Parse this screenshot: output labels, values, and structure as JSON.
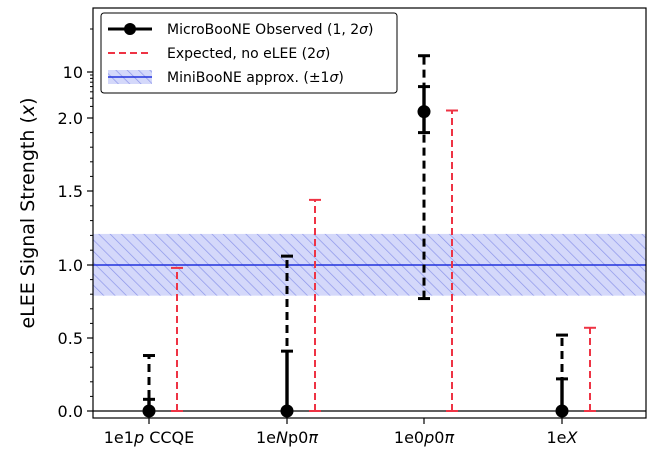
{
  "chart_data": {
    "type": "errorbar",
    "title": "",
    "xlabel": "",
    "ylabel_main": "eLEE Signal Strength (",
    "ylabel_var": "x",
    "ylabel_close": ")",
    "y_scale": "piecewise (linear 0 to 1.5, compressed above 1.5)",
    "y_ticks": [
      {
        "value": 0.0,
        "label": "0.0"
      },
      {
        "value": 0.5,
        "label": "0.5"
      },
      {
        "value": 1.0,
        "label": "1.0"
      },
      {
        "value": 1.5,
        "label": "1.5"
      },
      {
        "value": 2.0,
        "label": "2.0"
      },
      {
        "value": 10,
        "label": "10"
      }
    ],
    "categories": [
      {
        "main": "1e1",
        "italic": "p",
        "rest": " CCQE"
      },
      {
        "main": "1e",
        "italic": "N",
        "rest": "p0",
        "italic2": "π"
      },
      {
        "main": "1e0",
        "italic": "p",
        "rest": "0",
        "italic2": "π"
      },
      {
        "main": "1e",
        "italic": "X",
        "rest": ""
      }
    ],
    "band": {
      "center": 1.0,
      "low": 0.79,
      "high": 1.21,
      "color": "#3344dd"
    },
    "legend": {
      "position": "top-left",
      "entries": [
        {
          "label_text": "MicroBooNE Observed (1, 2",
          "sigma": "σ",
          "close": ")"
        },
        {
          "label_text": "Expected, no eLEE (2",
          "sigma": "σ",
          "close": ")"
        },
        {
          "label_text": "MiniBooNE approx. (±1",
          "sigma": "σ",
          "close": ")"
        }
      ]
    },
    "series": [
      {
        "name": "MicroBooNE Observed (1, 2σ)",
        "color": "#000000",
        "points": [
          {
            "category": 0,
            "value": 0.0,
            "err1_low": 0.0,
            "err1_high": 0.08,
            "err2_low": 0.0,
            "err2_high": 0.38
          },
          {
            "category": 1,
            "value": 0.0,
            "err1_low": 0.0,
            "err1_high": 0.41,
            "err2_low": 0.0,
            "err2_high": 1.06
          },
          {
            "category": 2,
            "value": 2.5,
            "err1_low": 1.9,
            "err1_high": 6.0,
            "err2_low": 0.77,
            "err2_high": 13.0
          },
          {
            "category": 3,
            "value": 0.0,
            "err1_low": 0.0,
            "err1_high": 0.22,
            "err2_low": 0.0,
            "err2_high": 0.52
          }
        ]
      },
      {
        "name": "Expected, no eLEE (2σ)",
        "color": "#ee3344",
        "points": [
          {
            "category": 0,
            "low": 0.0,
            "high": 0.98
          },
          {
            "category": 1,
            "low": 0.0,
            "high": 1.44
          },
          {
            "category": 2,
            "low": 0.0,
            "high": 2.6
          },
          {
            "category": 3,
            "low": 0.0,
            "high": 0.57
          }
        ]
      }
    ]
  }
}
